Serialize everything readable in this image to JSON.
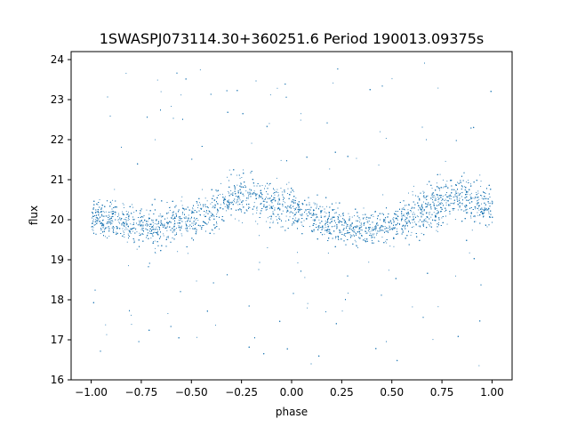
{
  "chart_data": {
    "type": "scatter",
    "title": "1SWASPJ073114.30+360251.6 Period 190013.09375s",
    "xlabel": "phase",
    "ylabel": "flux",
    "xlim": [
      -1.1,
      1.1
    ],
    "ylim": [
      16.0,
      24.2
    ],
    "xticks": [
      -1.0,
      -0.75,
      -0.5,
      -0.25,
      0.0,
      0.25,
      0.5,
      0.75,
      1.0
    ],
    "xtick_labels": [
      "−1.00",
      "−0.75",
      "−0.50",
      "−0.25",
      "0.00",
      "0.25",
      "0.50",
      "0.75",
      "1.00"
    ],
    "yticks": [
      16,
      17,
      18,
      19,
      20,
      21,
      22,
      23,
      24
    ],
    "ytick_labels": [
      "16",
      "17",
      "18",
      "19",
      "20",
      "21",
      "22",
      "23",
      "24"
    ],
    "grid": false,
    "marker_color": "#1f77b4",
    "series": [
      {
        "phase_range": [
          -1.0,
          1.0
        ],
        "flux_range": [
          16.3,
          24.0
        ],
        "x": [
          -1.0,
          -0.9,
          -0.8,
          -0.7,
          -0.6,
          -0.5,
          -0.4,
          -0.3,
          -0.2,
          -0.1,
          0.0,
          0.1,
          0.2,
          0.3,
          0.4,
          0.5,
          0.6,
          0.7,
          0.8,
          0.9,
          1.0
        ],
        "y": [
          20.1,
          20.0,
          19.9,
          19.8,
          19.9,
          20.0,
          20.2,
          20.6,
          20.6,
          20.4,
          20.3,
          20.1,
          19.9,
          19.8,
          19.8,
          19.9,
          20.1,
          20.4,
          20.6,
          20.5,
          20.3
        ],
        "spread": [
          0.7,
          0.7,
          0.7,
          0.65,
          0.7,
          0.7,
          0.8,
          0.9,
          0.85,
          0.75,
          0.75,
          0.7,
          0.7,
          0.65,
          0.7,
          0.7,
          0.8,
          0.9,
          0.85,
          0.8,
          0.75
        ]
      }
    ]
  }
}
